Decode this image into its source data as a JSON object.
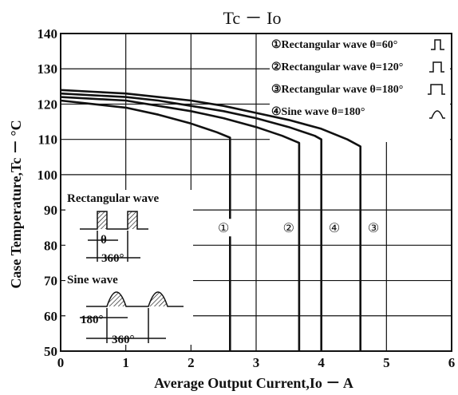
{
  "chart_data": {
    "type": "line",
    "title": "Tc － Io",
    "xlabel": "Average Output Current,Io － A",
    "ylabel": "Case Temperature,Tc － °C",
    "xlim": [
      0,
      6
    ],
    "ylim": [
      50,
      140
    ],
    "x_ticks": [
      "0",
      "1",
      "2",
      "3",
      "4",
      "5",
      "6"
    ],
    "y_ticks": [
      "50",
      "60",
      "70",
      "80",
      "90",
      "100",
      "110",
      "120",
      "130",
      "140"
    ],
    "grid": true,
    "legend": {
      "placement": "top-right",
      "entries": [
        {
          "mark": "①",
          "label": "Rectangular wave θ=60°",
          "icon": "rect-pulse-narrow-icon"
        },
        {
          "mark": "②",
          "label": "Rectangular wave θ=120°",
          "icon": "rect-pulse-medium-icon"
        },
        {
          "mark": "③",
          "label": "Rectangular wave θ=180°",
          "icon": "rect-pulse-wide-icon"
        },
        {
          "mark": "④",
          "label": "Sine wave θ=180°",
          "icon": "sine-pulse-icon"
        }
      ]
    },
    "series": [
      {
        "marker": "①",
        "label_x": 2.5,
        "label_y": 85,
        "points": [
          [
            0,
            121
          ],
          [
            0.5,
            120
          ],
          [
            1.0,
            119
          ],
          [
            1.5,
            117
          ],
          [
            2.0,
            114.5
          ],
          [
            2.4,
            112
          ],
          [
            2.6,
            110.5
          ],
          [
            2.6,
            50
          ]
        ]
      },
      {
        "marker": "②",
        "label_x": 3.5,
        "label_y": 85,
        "points": [
          [
            0,
            122
          ],
          [
            0.5,
            121.5
          ],
          [
            1.0,
            121
          ],
          [
            1.5,
            119.5
          ],
          [
            2.0,
            118
          ],
          [
            2.5,
            116
          ],
          [
            3.0,
            113.5
          ],
          [
            3.4,
            111
          ],
          [
            3.66,
            109
          ],
          [
            3.66,
            50
          ]
        ]
      },
      {
        "marker": "④",
        "label_x": 4.2,
        "label_y": 85,
        "points": [
          [
            0,
            123
          ],
          [
            0.5,
            122.5
          ],
          [
            1.0,
            122
          ],
          [
            1.5,
            121
          ],
          [
            2.0,
            119.5
          ],
          [
            2.5,
            118
          ],
          [
            3.0,
            116
          ],
          [
            3.5,
            113.5
          ],
          [
            3.9,
            111
          ],
          [
            4.0,
            110
          ],
          [
            4.0,
            50
          ]
        ]
      },
      {
        "marker": "③",
        "label_x": 4.8,
        "label_y": 85,
        "points": [
          [
            0,
            124
          ],
          [
            0.5,
            123.5
          ],
          [
            1.0,
            123
          ],
          [
            1.5,
            122
          ],
          [
            2.0,
            121
          ],
          [
            2.5,
            119.5
          ],
          [
            3.0,
            117.5
          ],
          [
            3.5,
            115.5
          ],
          [
            4.0,
            113
          ],
          [
            4.4,
            110
          ],
          [
            4.6,
            108
          ],
          [
            4.6,
            50
          ]
        ]
      }
    ],
    "annotations": {
      "rect_label": "Rectangular wave",
      "rect_theta": "θ",
      "rect_period": "360°",
      "sine_label": "Sine wave",
      "sine_theta": "180°",
      "sine_period": "360°"
    }
  }
}
